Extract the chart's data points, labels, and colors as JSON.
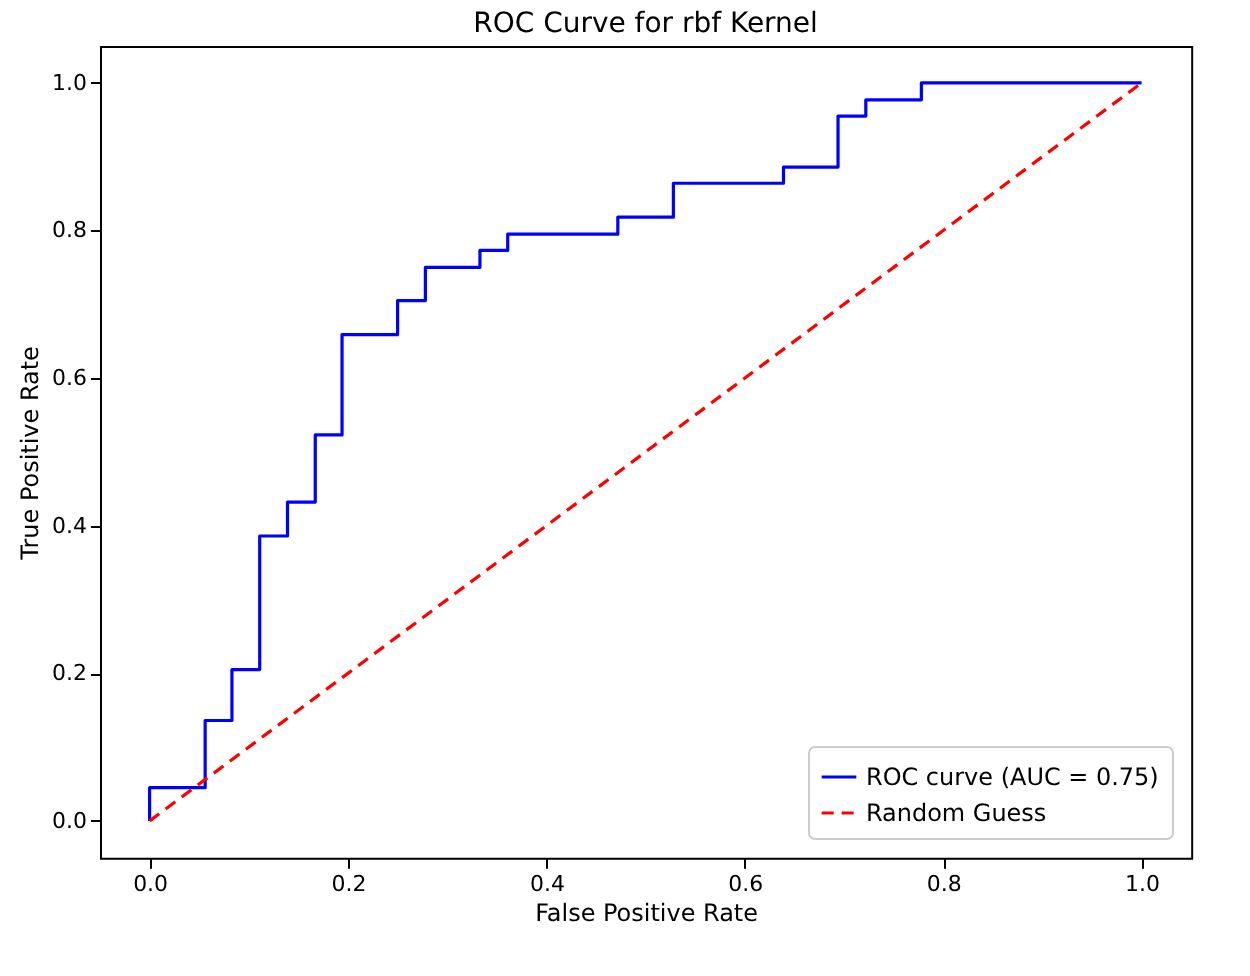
{
  "chart_data": {
    "type": "line",
    "title": "ROC Curve for rbf Kernel",
    "xlabel": "False Positive Rate",
    "ylabel": "True Positive Rate",
    "xlim": [
      -0.05,
      1.05
    ],
    "ylim": [
      -0.05,
      1.05
    ],
    "xticks": [
      {
        "value": 0,
        "label": "0.0"
      },
      {
        "value": 0.2,
        "label": "0.2"
      },
      {
        "value": 0.4,
        "label": "0.4"
      },
      {
        "value": 0.6,
        "label": "0.6"
      },
      {
        "value": 0.8,
        "label": "0.8"
      },
      {
        "value": 1,
        "label": "1.0"
      }
    ],
    "yticks": [
      {
        "value": 0,
        "label": "0.0"
      },
      {
        "value": 0.2,
        "label": "0.2"
      },
      {
        "value": 0.4,
        "label": "0.4"
      },
      {
        "value": 0.6,
        "label": "0.6"
      },
      {
        "value": 0.8,
        "label": "0.8"
      },
      {
        "value": 1,
        "label": "1.0"
      }
    ],
    "grid": false,
    "legend": "bottom right",
    "marker": "none",
    "series": [
      {
        "name": "ROC curve (AUC = 0.75)",
        "color": "#0000ff",
        "line_style": "solid",
        "x": [
          0,
          0,
          0.056,
          0.056,
          0.083,
          0.083,
          0.111,
          0.111,
          0.139,
          0.139,
          0.167,
          0.167,
          0.194,
          0.194,
          0.25,
          0.25,
          0.278,
          0.278,
          0.333,
          0.333,
          0.361,
          0.361,
          0.472,
          0.472,
          0.528,
          0.528,
          0.639,
          0.639,
          0.694,
          0.694,
          0.722,
          0.722,
          0.778,
          0.778,
          1
        ],
        "values": [
          0,
          0.045,
          0.045,
          0.136,
          0.136,
          0.205,
          0.205,
          0.386,
          0.386,
          0.432,
          0.432,
          0.523,
          0.523,
          0.659,
          0.659,
          0.705,
          0.705,
          0.75,
          0.75,
          0.773,
          0.773,
          0.795,
          0.795,
          0.818,
          0.818,
          0.864,
          0.864,
          0.886,
          0.886,
          0.955,
          0.955,
          0.977,
          0.977,
          1,
          1
        ]
      },
      {
        "name": "Random Guess",
        "color": "#ff0000",
        "line_style": "dashed",
        "x": [
          0,
          1
        ],
        "values": [
          0,
          1
        ]
      }
    ]
  }
}
